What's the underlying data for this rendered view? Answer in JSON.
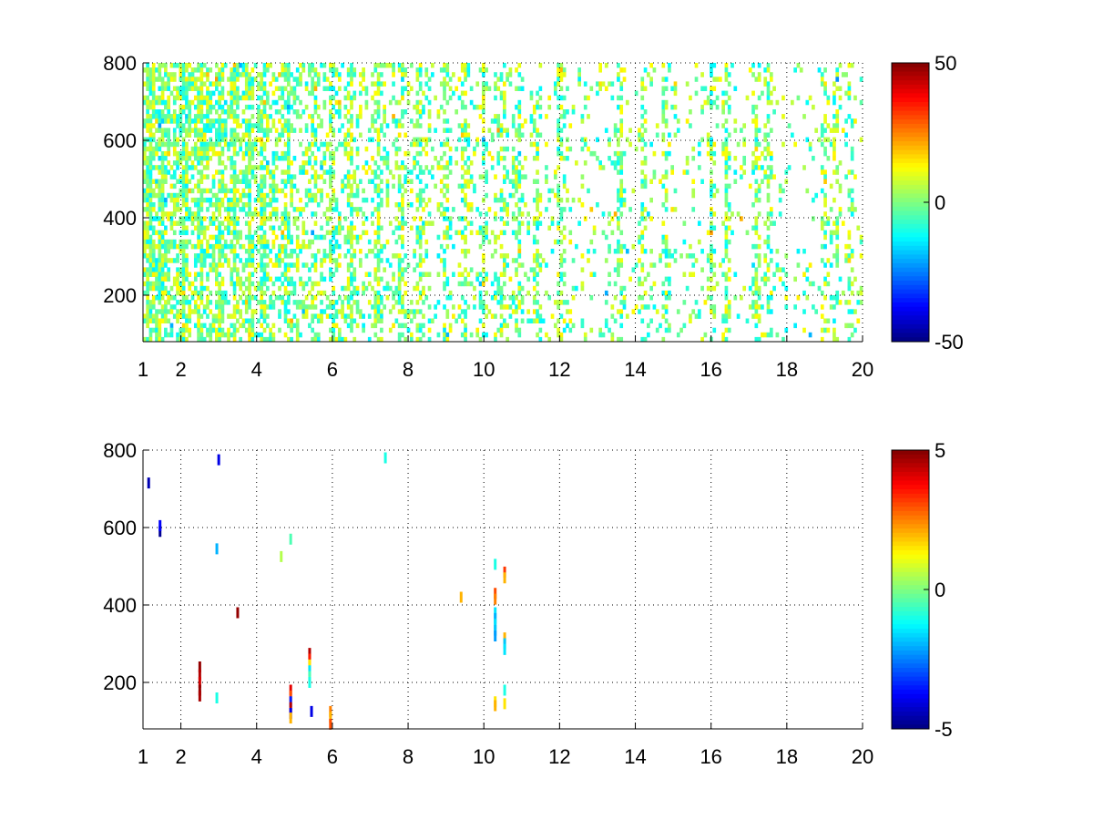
{
  "chart_data": [
    {
      "type": "heatmap",
      "title": "",
      "xlabel": "",
      "ylabel": "",
      "xlim": [
        1,
        20
      ],
      "ylim": [
        80,
        800
      ],
      "x_ticks": [
        1,
        2,
        4,
        6,
        8,
        10,
        12,
        14,
        16,
        18,
        20
      ],
      "y_ticks": [
        200,
        400,
        600,
        800
      ],
      "grid": true,
      "colormap": "jet",
      "clim": [
        -50,
        50
      ],
      "colorbar_ticks": [
        -50,
        0,
        50
      ],
      "background": "#ffffff",
      "description_of_values": "sparse scattered cells, mostly near 0 (values roughly -15 to 15), density decreasing with x; stronger vertical bands near x≈3, 5.5, 10.5, 13.5, 14.8, 16, 17.2, 19.2",
      "dense_columns": [
        1.2,
        1.5,
        2.1,
        2.5,
        3.0,
        3.4,
        3.8,
        4.2,
        4.8,
        5.5,
        6.0,
        6.5,
        7.2,
        7.8,
        8.3,
        9.0,
        9.5,
        10.0,
        10.5,
        10.9,
        11.4,
        12.0,
        13.6,
        14.2,
        14.8,
        16.0,
        16.4,
        17.2,
        17.5,
        19.0,
        19.3,
        19.7
      ]
    },
    {
      "type": "heatmap",
      "title": "",
      "xlabel": "",
      "ylabel": "",
      "xlim": [
        1,
        20
      ],
      "ylim": [
        80,
        800
      ],
      "x_ticks": [
        1,
        2,
        4,
        6,
        8,
        10,
        12,
        14,
        16,
        18,
        20
      ],
      "y_ticks": [
        200,
        400,
        600,
        800
      ],
      "grid": true,
      "colormap": "jet",
      "clim": [
        -5,
        5
      ],
      "colorbar_ticks": [
        -5,
        0,
        5
      ],
      "background": "#ffffff",
      "cells": [
        {
          "x": 1.15,
          "y": 715,
          "v": -4.5
        },
        {
          "x": 1.45,
          "y": 590,
          "v": -4.8
        },
        {
          "x": 1.45,
          "y": 605,
          "v": -3.8
        },
        {
          "x": 2.5,
          "y": 240,
          "v": 4.8
        },
        {
          "x": 2.5,
          "y": 220,
          "v": 4.5
        },
        {
          "x": 2.5,
          "y": 200,
          "v": 4.2
        },
        {
          "x": 2.5,
          "y": 180,
          "v": 4.8
        },
        {
          "x": 2.5,
          "y": 165,
          "v": 4.6
        },
        {
          "x": 2.95,
          "y": 160,
          "v": -1.0
        },
        {
          "x": 2.95,
          "y": 545,
          "v": -2.0
        },
        {
          "x": 3.0,
          "y": 775,
          "v": -4.0
        },
        {
          "x": 3.5,
          "y": 380,
          "v": 4.8
        },
        {
          "x": 4.65,
          "y": 525,
          "v": 0.5
        },
        {
          "x": 4.9,
          "y": 570,
          "v": -0.5
        },
        {
          "x": 4.9,
          "y": 180,
          "v": 4.0
        },
        {
          "x": 4.9,
          "y": 165,
          "v": 3.0
        },
        {
          "x": 4.9,
          "y": 150,
          "v": -3.5
        },
        {
          "x": 4.9,
          "y": 135,
          "v": 4.5
        },
        {
          "x": 4.9,
          "y": 120,
          "v": -4.0
        },
        {
          "x": 4.9,
          "y": 108,
          "v": 2.0
        },
        {
          "x": 5.4,
          "y": 275,
          "v": 4.5
        },
        {
          "x": 5.4,
          "y": 260,
          "v": 3.5
        },
        {
          "x": 5.4,
          "y": 245,
          "v": 1.5
        },
        {
          "x": 5.4,
          "y": 230,
          "v": -1.5
        },
        {
          "x": 5.4,
          "y": 215,
          "v": -0.5
        },
        {
          "x": 5.4,
          "y": 200,
          "v": -1.0
        },
        {
          "x": 5.45,
          "y": 125,
          "v": -4.0
        },
        {
          "x": 5.95,
          "y": 125,
          "v": 2.5
        },
        {
          "x": 5.95,
          "y": 110,
          "v": 2.0
        },
        {
          "x": 5.95,
          "y": 92,
          "v": 3.0
        },
        {
          "x": 7.4,
          "y": 780,
          "v": -1.0
        },
        {
          "x": 9.4,
          "y": 420,
          "v": 2.0
        },
        {
          "x": 10.3,
          "y": 505,
          "v": -1.0
        },
        {
          "x": 10.3,
          "y": 430,
          "v": 3.0
        },
        {
          "x": 10.3,
          "y": 415,
          "v": 2.5
        },
        {
          "x": 10.3,
          "y": 380,
          "v": -1.5
        },
        {
          "x": 10.3,
          "y": 365,
          "v": -2.0
        },
        {
          "x": 10.3,
          "y": 350,
          "v": -1.5
        },
        {
          "x": 10.3,
          "y": 335,
          "v": -1.8
        },
        {
          "x": 10.3,
          "y": 320,
          "v": -2.2
        },
        {
          "x": 10.3,
          "y": 150,
          "v": 1.5
        },
        {
          "x": 10.3,
          "y": 140,
          "v": 2.0
        },
        {
          "x": 10.55,
          "y": 485,
          "v": 3.2
        },
        {
          "x": 10.55,
          "y": 470,
          "v": 2.0
        },
        {
          "x": 10.55,
          "y": 315,
          "v": 2.0
        },
        {
          "x": 10.55,
          "y": 300,
          "v": -1.8
        },
        {
          "x": 10.55,
          "y": 285,
          "v": -1.5
        },
        {
          "x": 10.55,
          "y": 180,
          "v": -1.0
        },
        {
          "x": 10.55,
          "y": 145,
          "v": 1.5
        }
      ]
    }
  ]
}
